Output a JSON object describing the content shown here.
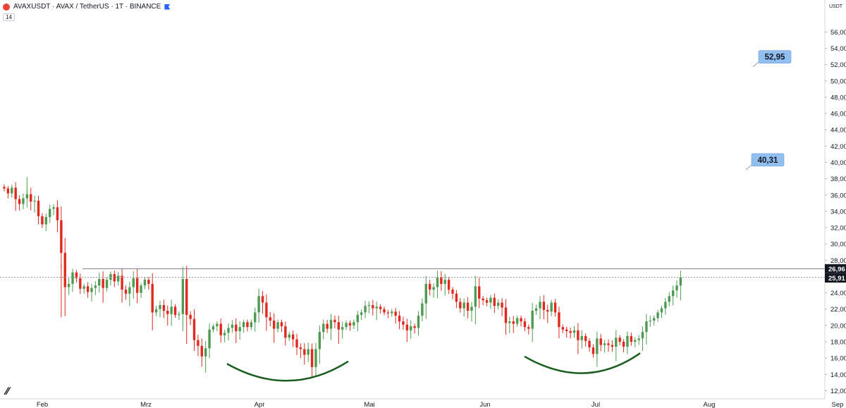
{
  "header": {
    "title": "AVAXUSDT · AVAX / TetherUS · 1T · BINANCE",
    "indicator_badge": "14"
  },
  "price_axis": {
    "currency": "USDT",
    "ticks": [
      "56,00",
      "54,00",
      "52,00",
      "50,00",
      "48,00",
      "46,00",
      "44,00",
      "42,00",
      "40,00",
      "38,00",
      "36,00",
      "34,00",
      "32,00",
      "30,00",
      "28,00",
      "26,00",
      "24,00",
      "22,00",
      "20,00",
      "18,00",
      "16,00",
      "14,00",
      "12,00"
    ],
    "last_price_label": "25,91",
    "resistance_label": "26,96"
  },
  "time_axis": {
    "labels": [
      "Feb",
      "Mrz",
      "Apr",
      "Mai",
      "Jun",
      "Jul",
      "Aug",
      "Sep"
    ]
  },
  "annotations": {
    "target_1": "52,95",
    "target_2": "40,31"
  },
  "colors": {
    "up": "#26a69a",
    "up_body": "#4e9a52",
    "down": "#e0281f",
    "resistance_line": "#787b86",
    "curve": "#1b5e20",
    "label_bg": "#90bff0"
  },
  "chart_data": {
    "type": "candlestick",
    "title": "AVAXUSDT · AVAX / TetherUS · 1T · BINANCE",
    "ylim": [
      11,
      57.5
    ],
    "resistance_level": 26.96,
    "last_price": 25.91,
    "targets": [
      52.95,
      40.31
    ],
    "x": [
      "Feb",
      "Mrz",
      "Apr",
      "Mai",
      "Jun",
      "Jul",
      "Aug",
      "Sep"
    ],
    "closes": [
      36.8,
      36.2,
      36.9,
      35.5,
      34.9,
      35.6,
      36.1,
      35.2,
      35.3,
      33.4,
      32.4,
      33.3,
      34.3,
      34.5,
      32.9,
      28.9,
      24.7,
      25.1,
      26.5,
      25.8,
      24.5,
      24.8,
      24.1,
      24.6,
      24.9,
      25.7,
      24.6,
      25.6,
      26.3,
      25.4,
      26.1,
      24.4,
      23.9,
      24.7,
      25.8,
      24.0,
      24.9,
      25.6,
      25.1,
      21.6,
      22.0,
      22.5,
      21.8,
      21.4,
      22.3,
      21.3,
      21.4,
      25.7,
      21.3,
      20.8,
      18.2,
      17.5,
      16.2,
      17.2,
      19.5,
      19.9,
      20.2,
      18.8,
      19.1,
      19.7,
      20.1,
      19.3,
      19.8,
      20.4,
      19.8,
      20.4,
      21.6,
      23.6,
      22.8,
      21.0,
      20.6,
      19.6,
      20.4,
      19.9,
      18.5,
      18.9,
      18.3,
      17.3,
      17.1,
      16.4,
      17.1,
      14.9,
      17.1,
      19.2,
      20.2,
      19.6,
      20.7,
      20.4,
      19.5,
      19.8,
      20.3,
      20.0,
      20.4,
      21.3,
      21.6,
      22.4,
      22.5,
      22.1,
      22.3,
      22.0,
      21.6,
      21.5,
      21.7,
      21.2,
      20.5,
      20.1,
      19.4,
      19.9,
      19.7,
      21.2,
      22.7,
      25.1,
      24.4,
      24.7,
      25.9,
      25.1,
      25.6,
      24.4,
      23.9,
      22.9,
      22.1,
      22.8,
      21.8,
      22.3,
      24.8,
      23.3,
      23.1,
      22.8,
      23.4,
      22.4,
      22.8,
      22.2,
      20.3,
      20.5,
      20.2,
      20.9,
      20.5,
      19.8,
      19.6,
      21.8,
      22.1,
      22.9,
      21.9,
      21.7,
      22.8,
      21.6,
      19.8,
      19.5,
      19.3,
      19.1,
      19.4,
      18.2,
      18.7,
      18.1,
      17.3,
      16.5,
      18.4,
      17.6,
      17.8,
      17.6,
      17.4,
      18.5,
      18.0,
      17.4,
      18.7,
      18.0,
      18.2,
      18.4,
      19.2,
      20.5,
      20.6,
      20.9,
      21.6,
      22.1,
      22.9,
      23.6,
      24.3,
      24.9,
      25.9
    ]
  }
}
